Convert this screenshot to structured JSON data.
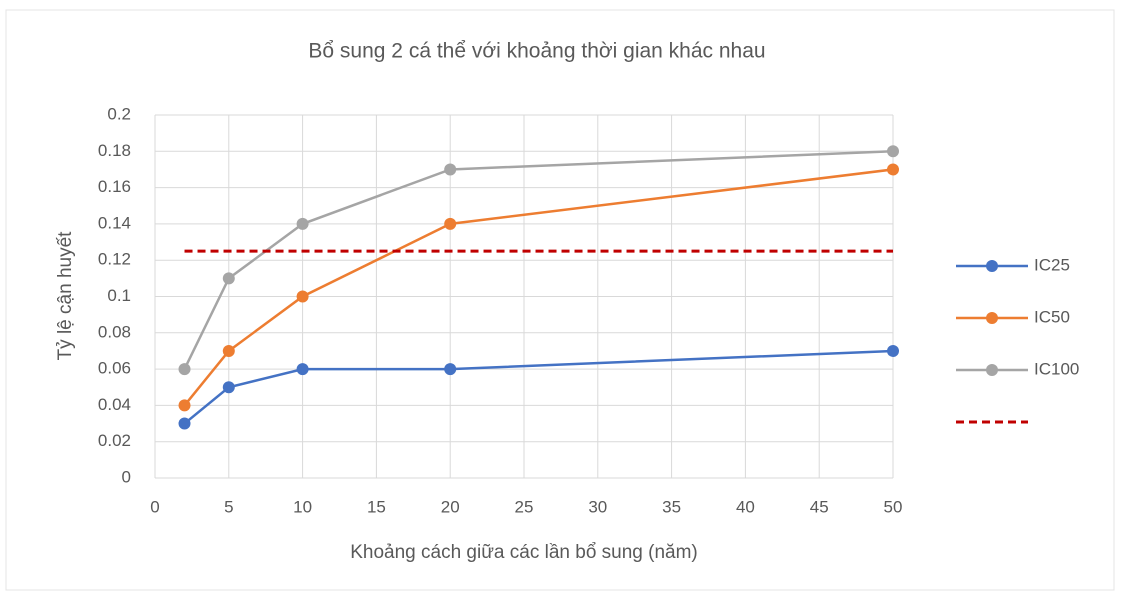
{
  "chart_data": {
    "type": "line",
    "title": "Bổ sung 2 cá thể với khoảng thời gian khác nhau",
    "xlabel": "Khoảng cách giữa các lần bổ sung (năm)",
    "ylabel": "Tỷ lệ cận huyết",
    "xlim": [
      0,
      50
    ],
    "xticks": [
      0,
      5,
      10,
      15,
      20,
      25,
      30,
      35,
      40,
      45,
      50
    ],
    "ylim": [
      0,
      0.2
    ],
    "yticks": [
      0,
      0.02,
      0.04,
      0.06,
      0.08,
      0.1,
      0.12,
      0.14,
      0.16,
      0.18,
      0.2
    ],
    "grid": true,
    "legend": "right",
    "series": [
      {
        "name": "IC25",
        "color": "#4472c4",
        "marker": true,
        "x": [
          2,
          5,
          10,
          20,
          50
        ],
        "values": [
          0.03,
          0.05,
          0.06,
          0.06,
          0.07
        ]
      },
      {
        "name": "IC50",
        "color": "#ed7d31",
        "marker": true,
        "x": [
          2,
          5,
          10,
          20,
          50
        ],
        "values": [
          0.04,
          0.07,
          0.1,
          0.14,
          0.17
        ]
      },
      {
        "name": "IC100",
        "color": "#a5a5a5",
        "marker": true,
        "x": [
          2,
          5,
          10,
          20,
          50
        ],
        "values": [
          0.06,
          0.11,
          0.14,
          0.17,
          0.18
        ]
      },
      {
        "color": "#c00000",
        "marker": false,
        "dashed": true,
        "x": [
          2,
          50
        ],
        "values": [
          0.125,
          0.125
        ]
      }
    ]
  }
}
